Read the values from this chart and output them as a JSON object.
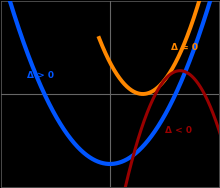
{
  "background_color": "#000000",
  "ax_facecolor": "#000000",
  "grid_color": "#444444",
  "axis_color": "#666666",
  "blue_color": "#0055ff",
  "orange_color": "#ff8800",
  "red_color": "#990000",
  "blue_label": "Δ > 0",
  "orange_label": "Δ = 0",
  "red_label": "Δ < 0",
  "label_fontsize": 6.5,
  "blue_lw": 3.0,
  "orange_lw": 2.8,
  "red_lw": 2.2,
  "xlim": [
    -5.0,
    5.0
  ],
  "ylim": [
    -6.0,
    6.0
  ]
}
